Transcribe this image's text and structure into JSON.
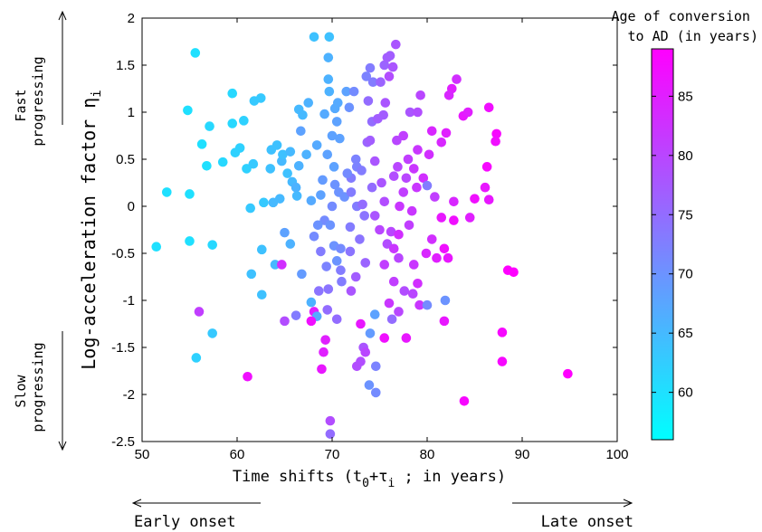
{
  "chart_data": {
    "type": "scatter",
    "title": "",
    "xlabel": "Time shifts (t0+τi ; in years)",
    "ylabel": "Log-acceleration factor ηi",
    "xlim": [
      50,
      100
    ],
    "ylim": [
      -2.5,
      2
    ],
    "xticks": [
      "50",
      "60",
      "70",
      "80",
      "90",
      "100"
    ],
    "yticks": [
      "2",
      "1.5",
      "1",
      "0.5",
      "0",
      "-0.5",
      "-1",
      "-1.5",
      "-2",
      "-2.5"
    ],
    "grid": false,
    "colorbar": {
      "title_line1": "Age of conversion",
      "title_line2": "to AD (in years)",
      "range": [
        56,
        89
      ],
      "ticks": [
        "60",
        "65",
        "70",
        "75",
        "80",
        "85"
      ],
      "colors": [
        "#00ffff",
        "#ff00ff"
      ]
    },
    "annotations": {
      "fast_line1": "Fast",
      "fast_line2": "progressing",
      "slow_line1": "Slow",
      "slow_line2": "progressing",
      "early": "Early onset",
      "late": "Late onset"
    },
    "points": [
      {
        "x": 55.6,
        "y": 1.63,
        "c": 60
      },
      {
        "x": 54.8,
        "y": 1.02,
        "c": 60
      },
      {
        "x": 56.3,
        "y": 0.66,
        "c": 60
      },
      {
        "x": 57.1,
        "y": 0.85,
        "c": 61
      },
      {
        "x": 56.8,
        "y": 0.43,
        "c": 60
      },
      {
        "x": 58.5,
        "y": 0.47,
        "c": 61
      },
      {
        "x": 59.5,
        "y": 1.2,
        "c": 61
      },
      {
        "x": 59.5,
        "y": 0.88,
        "c": 61
      },
      {
        "x": 59.8,
        "y": 0.57,
        "c": 62
      },
      {
        "x": 60.7,
        "y": 0.91,
        "c": 62
      },
      {
        "x": 60.3,
        "y": 0.62,
        "c": 62
      },
      {
        "x": 61.0,
        "y": 0.4,
        "c": 62
      },
      {
        "x": 61.8,
        "y": 1.12,
        "c": 63
      },
      {
        "x": 62.5,
        "y": 1.15,
        "c": 63
      },
      {
        "x": 61.7,
        "y": 0.45,
        "c": 63
      },
      {
        "x": 52.6,
        "y": 0.15,
        "c": 60
      },
      {
        "x": 55.0,
        "y": 0.13,
        "c": 60
      },
      {
        "x": 51.5,
        "y": -0.43,
        "c": 60
      },
      {
        "x": 55.0,
        "y": -0.37,
        "c": 60
      },
      {
        "x": 57.4,
        "y": -0.41,
        "c": 61
      },
      {
        "x": 61.4,
        "y": -0.02,
        "c": 63
      },
      {
        "x": 62.8,
        "y": 0.04,
        "c": 63
      },
      {
        "x": 61.5,
        "y": -0.72,
        "c": 64
      },
      {
        "x": 62.6,
        "y": -0.46,
        "c": 64
      },
      {
        "x": 62.6,
        "y": -0.94,
        "c": 64
      },
      {
        "x": 64.0,
        "y": -0.62,
        "c": 65
      },
      {
        "x": 64.7,
        "y": -0.62,
        "c": 83
      },
      {
        "x": 57.4,
        "y": -1.35,
        "c": 63
      },
      {
        "x": 55.7,
        "y": -1.61,
        "c": 62
      },
      {
        "x": 56.0,
        "y": -1.12,
        "c": 81
      },
      {
        "x": 61.1,
        "y": -1.81,
        "c": 87
      },
      {
        "x": 63.6,
        "y": 0.6,
        "c": 64
      },
      {
        "x": 64.2,
        "y": 0.65,
        "c": 64
      },
      {
        "x": 63.5,
        "y": 0.4,
        "c": 64
      },
      {
        "x": 64.7,
        "y": 0.48,
        "c": 65
      },
      {
        "x": 64.8,
        "y": 0.55,
        "c": 64
      },
      {
        "x": 65.3,
        "y": 0.35,
        "c": 64
      },
      {
        "x": 65.6,
        "y": 0.58,
        "c": 65
      },
      {
        "x": 66.5,
        "y": 0.43,
        "c": 66
      },
      {
        "x": 65.8,
        "y": 0.26,
        "c": 65
      },
      {
        "x": 66.2,
        "y": 0.2,
        "c": 66
      },
      {
        "x": 66.3,
        "y": 0.11,
        "c": 65
      },
      {
        "x": 64.5,
        "y": 0.08,
        "c": 65
      },
      {
        "x": 63.8,
        "y": 0.04,
        "c": 65
      },
      {
        "x": 65.0,
        "y": -0.28,
        "c": 68
      },
      {
        "x": 65.6,
        "y": -0.4,
        "c": 66
      },
      {
        "x": 66.8,
        "y": -0.72,
        "c": 69
      },
      {
        "x": 66.2,
        "y": -1.16,
        "c": 73
      },
      {
        "x": 67.8,
        "y": -1.02,
        "c": 66
      },
      {
        "x": 68.1,
        "y": -1.12,
        "c": 85
      },
      {
        "x": 68.4,
        "y": -1.17,
        "c": 67
      },
      {
        "x": 67.8,
        "y": -1.22,
        "c": 87
      },
      {
        "x": 65.0,
        "y": -1.22,
        "c": 79
      },
      {
        "x": 66.5,
        "y": 1.03,
        "c": 65
      },
      {
        "x": 66.9,
        "y": 0.97,
        "c": 65
      },
      {
        "x": 67.5,
        "y": 1.1,
        "c": 66
      },
      {
        "x": 67.3,
        "y": 0.55,
        "c": 66
      },
      {
        "x": 66.7,
        "y": 0.8,
        "c": 68
      },
      {
        "x": 68.1,
        "y": 1.8,
        "c": 64
      },
      {
        "x": 69.7,
        "y": 1.8,
        "c": 64
      },
      {
        "x": 69.6,
        "y": 1.58,
        "c": 66
      },
      {
        "x": 69.6,
        "y": 1.35,
        "c": 66
      },
      {
        "x": 69.7,
        "y": 1.22,
        "c": 66
      },
      {
        "x": 69.2,
        "y": 0.98,
        "c": 67
      },
      {
        "x": 70.3,
        "y": 1.04,
        "c": 67
      },
      {
        "x": 70.5,
        "y": 0.9,
        "c": 68
      },
      {
        "x": 70.6,
        "y": 1.1,
        "c": 67
      },
      {
        "x": 68.4,
        "y": 0.65,
        "c": 67
      },
      {
        "x": 69.5,
        "y": 0.55,
        "c": 68
      },
      {
        "x": 70.0,
        "y": 0.75,
        "c": 68
      },
      {
        "x": 70.8,
        "y": 0.72,
        "c": 68
      },
      {
        "x": 70.2,
        "y": 0.42,
        "c": 68
      },
      {
        "x": 69.0,
        "y": 0.28,
        "c": 69
      },
      {
        "x": 70.3,
        "y": 0.23,
        "c": 70
      },
      {
        "x": 70.7,
        "y": 0.15,
        "c": 70
      },
      {
        "x": 71.3,
        "y": 0.1,
        "c": 70
      },
      {
        "x": 70.0,
        "y": 0.0,
        "c": 71
      },
      {
        "x": 69.2,
        "y": -0.15,
        "c": 71
      },
      {
        "x": 69.8,
        "y": -0.2,
        "c": 70
      },
      {
        "x": 68.5,
        "y": -0.2,
        "c": 70
      },
      {
        "x": 68.1,
        "y": -0.32,
        "c": 71
      },
      {
        "x": 68.8,
        "y": -0.48,
        "c": 73
      },
      {
        "x": 69.4,
        "y": -0.64,
        "c": 72
      },
      {
        "x": 70.2,
        "y": -0.42,
        "c": 70
      },
      {
        "x": 70.5,
        "y": -0.58,
        "c": 70
      },
      {
        "x": 70.9,
        "y": -0.45,
        "c": 71
      },
      {
        "x": 71.0,
        "y": -0.8,
        "c": 73
      },
      {
        "x": 69.6,
        "y": -0.88,
        "c": 74
      },
      {
        "x": 68.6,
        "y": -0.9,
        "c": 74
      },
      {
        "x": 69.5,
        "y": -1.1,
        "c": 75
      },
      {
        "x": 70.5,
        "y": -1.2,
        "c": 75
      },
      {
        "x": 69.3,
        "y": -1.42,
        "c": 85
      },
      {
        "x": 69.1,
        "y": -1.55,
        "c": 85
      },
      {
        "x": 68.9,
        "y": -1.73,
        "c": 86
      },
      {
        "x": 69.8,
        "y": -2.28,
        "c": 79
      },
      {
        "x": 69.8,
        "y": -2.42,
        "c": 75
      },
      {
        "x": 71.5,
        "y": 1.22,
        "c": 68
      },
      {
        "x": 72.3,
        "y": 1.22,
        "c": 71
      },
      {
        "x": 71.8,
        "y": 1.05,
        "c": 70
      },
      {
        "x": 72.5,
        "y": 0.5,
        "c": 72
      },
      {
        "x": 72.0,
        "y": 0.3,
        "c": 73
      },
      {
        "x": 72.0,
        "y": 0.15,
        "c": 73
      },
      {
        "x": 72.6,
        "y": 0.42,
        "c": 72
      },
      {
        "x": 73.1,
        "y": 0.38,
        "c": 73
      },
      {
        "x": 72.6,
        "y": 0.0,
        "c": 73
      },
      {
        "x": 73.4,
        "y": -0.1,
        "c": 74
      },
      {
        "x": 72.9,
        "y": -0.35,
        "c": 74
      },
      {
        "x": 73.5,
        "y": -0.6,
        "c": 76
      },
      {
        "x": 72.5,
        "y": -0.75,
        "c": 77
      },
      {
        "x": 72.0,
        "y": -0.9,
        "c": 78
      },
      {
        "x": 73.3,
        "y": -1.5,
        "c": 78
      },
      {
        "x": 72.6,
        "y": -1.7,
        "c": 79
      },
      {
        "x": 73.0,
        "y": -1.65,
        "c": 79
      },
      {
        "x": 73.5,
        "y": -1.55,
        "c": 80
      },
      {
        "x": 73.9,
        "y": -1.9,
        "c": 70
      },
      {
        "x": 74.6,
        "y": -1.98,
        "c": 71
      },
      {
        "x": 74.6,
        "y": -1.7,
        "c": 72
      },
      {
        "x": 74.5,
        "y": -1.15,
        "c": 68
      },
      {
        "x": 74.0,
        "y": -1.35,
        "c": 69
      },
      {
        "x": 73.0,
        "y": -1.25,
        "c": 86
      },
      {
        "x": 73.6,
        "y": 1.38,
        "c": 72
      },
      {
        "x": 74.0,
        "y": 1.47,
        "c": 73
      },
      {
        "x": 74.3,
        "y": 1.32,
        "c": 73
      },
      {
        "x": 73.8,
        "y": 1.12,
        "c": 75
      },
      {
        "x": 74.2,
        "y": 0.9,
        "c": 75
      },
      {
        "x": 73.7,
        "y": 0.68,
        "c": 76
      },
      {
        "x": 74.0,
        "y": 0.7,
        "c": 77
      },
      {
        "x": 74.8,
        "y": 0.93,
        "c": 77
      },
      {
        "x": 75.4,
        "y": 0.97,
        "c": 77
      },
      {
        "x": 75.5,
        "y": 1.5,
        "c": 76
      },
      {
        "x": 75.8,
        "y": 1.58,
        "c": 77
      },
      {
        "x": 76.1,
        "y": 1.6,
        "c": 77
      },
      {
        "x": 76.4,
        "y": 1.48,
        "c": 78
      },
      {
        "x": 76.7,
        "y": 1.72,
        "c": 78
      },
      {
        "x": 76.0,
        "y": 1.38,
        "c": 79
      },
      {
        "x": 75.1,
        "y": 1.32,
        "c": 76
      },
      {
        "x": 75.6,
        "y": 1.1,
        "c": 78
      },
      {
        "x": 74.5,
        "y": 0.48,
        "c": 78
      },
      {
        "x": 75.2,
        "y": 0.25,
        "c": 78
      },
      {
        "x": 75.5,
        "y": 0.05,
        "c": 79
      },
      {
        "x": 74.5,
        "y": -0.1,
        "c": 78
      },
      {
        "x": 75.0,
        "y": -0.25,
        "c": 80
      },
      {
        "x": 75.8,
        "y": -0.4,
        "c": 79
      },
      {
        "x": 76.2,
        "y": -0.27,
        "c": 80
      },
      {
        "x": 75.5,
        "y": -0.62,
        "c": 81
      },
      {
        "x": 76.5,
        "y": -0.8,
        "c": 81
      },
      {
        "x": 76.0,
        "y": -1.03,
        "c": 82
      },
      {
        "x": 76.3,
        "y": -1.2,
        "c": 75
      },
      {
        "x": 75.5,
        "y": -1.4,
        "c": 87
      },
      {
        "x": 77.8,
        "y": -1.4,
        "c": 86
      },
      {
        "x": 77.0,
        "y": -1.12,
        "c": 80
      },
      {
        "x": 77.6,
        "y": -0.9,
        "c": 79
      },
      {
        "x": 77.0,
        "y": -0.55,
        "c": 80
      },
      {
        "x": 78.5,
        "y": -0.93,
        "c": 80
      },
      {
        "x": 79.2,
        "y": -1.05,
        "c": 82
      },
      {
        "x": 80.0,
        "y": -1.05,
        "c": 71
      },
      {
        "x": 79.0,
        "y": -0.82,
        "c": 83
      },
      {
        "x": 78.6,
        "y": -0.62,
        "c": 82
      },
      {
        "x": 79.9,
        "y": -0.5,
        "c": 84
      },
      {
        "x": 80.5,
        "y": -0.35,
        "c": 83
      },
      {
        "x": 81.0,
        "y": -0.55,
        "c": 85
      },
      {
        "x": 81.8,
        "y": -0.45,
        "c": 87
      },
      {
        "x": 82.2,
        "y": -0.55,
        "c": 86
      },
      {
        "x": 81.5,
        "y": -0.12,
        "c": 86
      },
      {
        "x": 82.8,
        "y": -0.15,
        "c": 87
      },
      {
        "x": 81.9,
        "y": -1.0,
        "c": 70
      },
      {
        "x": 81.8,
        "y": -1.22,
        "c": 86
      },
      {
        "x": 77.1,
        "y": 0.0,
        "c": 82
      },
      {
        "x": 77.5,
        "y": 0.15,
        "c": 81
      },
      {
        "x": 77.8,
        "y": 0.3,
        "c": 80
      },
      {
        "x": 78.0,
        "y": 0.5,
        "c": 81
      },
      {
        "x": 77.5,
        "y": 0.75,
        "c": 81
      },
      {
        "x": 76.8,
        "y": 0.7,
        "c": 80
      },
      {
        "x": 76.5,
        "y": 0.32,
        "c": 79
      },
      {
        "x": 76.9,
        "y": 0.42,
        "c": 80
      },
      {
        "x": 78.2,
        "y": 1.0,
        "c": 78
      },
      {
        "x": 79.0,
        "y": 1.0,
        "c": 79
      },
      {
        "x": 79.3,
        "y": 1.18,
        "c": 80
      },
      {
        "x": 79.0,
        "y": 0.6,
        "c": 82
      },
      {
        "x": 78.6,
        "y": 0.4,
        "c": 82
      },
      {
        "x": 78.9,
        "y": 0.2,
        "c": 82
      },
      {
        "x": 79.6,
        "y": 0.3,
        "c": 83
      },
      {
        "x": 80.0,
        "y": 0.22,
        "c": 73
      },
      {
        "x": 80.2,
        "y": 0.55,
        "c": 83
      },
      {
        "x": 80.5,
        "y": 0.8,
        "c": 84
      },
      {
        "x": 80.8,
        "y": 0.1,
        "c": 81
      },
      {
        "x": 81.5,
        "y": 0.68,
        "c": 84
      },
      {
        "x": 82.0,
        "y": 0.78,
        "c": 85
      },
      {
        "x": 82.6,
        "y": 1.25,
        "c": 85
      },
      {
        "x": 82.3,
        "y": 1.18,
        "c": 84
      },
      {
        "x": 83.1,
        "y": 1.35,
        "c": 83
      },
      {
        "x": 83.8,
        "y": 0.96,
        "c": 86
      },
      {
        "x": 84.3,
        "y": 1.0,
        "c": 85
      },
      {
        "x": 86.5,
        "y": 1.05,
        "c": 87
      },
      {
        "x": 87.3,
        "y": 0.77,
        "c": 88
      },
      {
        "x": 87.2,
        "y": 0.69,
        "c": 87
      },
      {
        "x": 86.3,
        "y": 0.42,
        "c": 88
      },
      {
        "x": 86.1,
        "y": 0.2,
        "c": 86
      },
      {
        "x": 86.5,
        "y": 0.07,
        "c": 86
      },
      {
        "x": 85.0,
        "y": 0.08,
        "c": 87
      },
      {
        "x": 82.8,
        "y": 0.05,
        "c": 84
      },
      {
        "x": 84.5,
        "y": -0.12,
        "c": 85
      },
      {
        "x": 87.9,
        "y": -1.34,
        "c": 88
      },
      {
        "x": 87.9,
        "y": -1.65,
        "c": 88
      },
      {
        "x": 88.5,
        "y": -0.68,
        "c": 89
      },
      {
        "x": 89.1,
        "y": -0.7,
        "c": 89
      },
      {
        "x": 83.9,
        "y": -2.07,
        "c": 88
      },
      {
        "x": 94.8,
        "y": -1.78,
        "c": 89
      },
      {
        "x": 78.1,
        "y": -0.2,
        "c": 81
      },
      {
        "x": 78.4,
        "y": -0.05,
        "c": 82
      },
      {
        "x": 77.0,
        "y": -0.3,
        "c": 83
      },
      {
        "x": 76.5,
        "y": -0.45,
        "c": 82
      },
      {
        "x": 74.2,
        "y": 0.2,
        "c": 75
      },
      {
        "x": 73.2,
        "y": 0.02,
        "c": 75
      },
      {
        "x": 71.6,
        "y": 0.35,
        "c": 71
      },
      {
        "x": 71.9,
        "y": -0.48,
        "c": 74
      },
      {
        "x": 70.9,
        "y": -0.68,
        "c": 73
      },
      {
        "x": 71.9,
        "y": -0.22,
        "c": 73
      },
      {
        "x": 68.8,
        "y": 0.12,
        "c": 68
      },
      {
        "x": 67.8,
        "y": 0.06,
        "c": 67
      }
    ]
  }
}
